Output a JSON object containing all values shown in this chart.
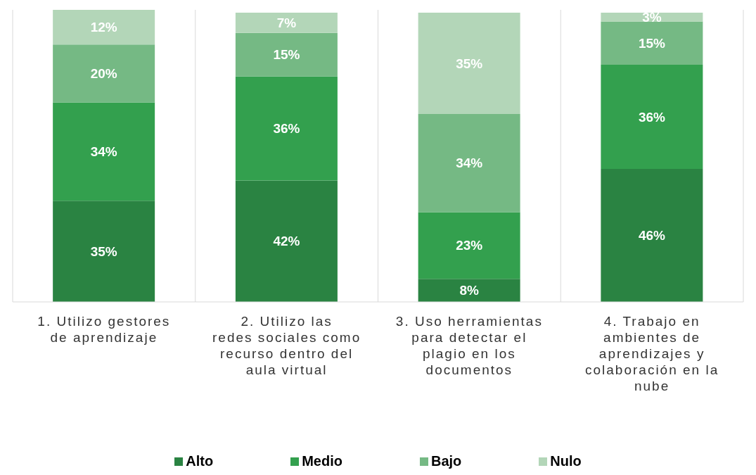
{
  "chart_data": {
    "type": "bar",
    "stacked": true,
    "grid": "x",
    "legend": "bottom",
    "categories": [
      "1. Utilizo gestores de aprendizaje",
      "2. Utilizo  las redes sociales como recurso dentro del aula virtual",
      "3. Uso herramientas para detectar el plagio en los documentos",
      "4. Trabajo en ambientes de aprendizajes y colaboración en la nube"
    ],
    "series": [
      {
        "name": "Alto",
        "color": "#2a8342",
        "values": [
          35,
          42,
          8,
          46
        ],
        "value_labels": [
          "35%",
          "42%",
          "8%",
          "46%"
        ]
      },
      {
        "name": "Medio",
        "color": "#33a04e",
        "values": [
          34,
          36,
          23,
          36
        ],
        "value_labels": [
          "34%",
          "36%",
          "23%",
          "36%"
        ]
      },
      {
        "name": "Bajo",
        "color": "#75b984",
        "values": [
          20,
          15,
          34,
          15
        ],
        "value_labels": [
          "20%",
          "15%",
          "34%",
          "15%"
        ]
      },
      {
        "name": "Nulo",
        "color": "#b3d6b8",
        "values": [
          12,
          7,
          35,
          3
        ],
        "value_labels": [
          "12%",
          "7%",
          "35%",
          "3%"
        ]
      }
    ]
  }
}
